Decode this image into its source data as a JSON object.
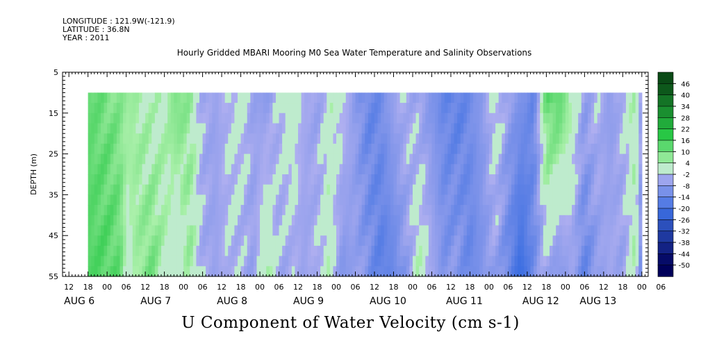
{
  "header": {
    "longitude": "LONGITUDE : 121.9W(-121.9)",
    "latitude": "LATITUDE : 36.8N",
    "year": "YEAR : 2011"
  },
  "chart_data": {
    "type": "heatmap",
    "title": "Hourly Gridded MBARI Mooring M0 Sea Water Temperature and Salinity Observations",
    "xlabel": "U Component of Water Velocity (cm s-1)",
    "ylabel": "DEPTH (m)",
    "ylim": [
      5,
      55
    ],
    "y_inverted": true,
    "y_ticks": [
      5,
      15,
      25,
      35,
      45,
      55
    ],
    "x_unit": "hours since AUG 6 00:00",
    "xlim": [
      -14,
      170
    ],
    "data_xlim": [
      -6,
      168
    ],
    "data_ylim": [
      10,
      55
    ],
    "hour_labels": [
      "12",
      "18",
      "00",
      "06",
      "12",
      "18",
      "00",
      "06",
      "12",
      "18",
      "00",
      "06",
      "12",
      "18",
      "00",
      "06",
      "12",
      "18",
      "00",
      "06",
      "12",
      "18",
      "00",
      "06",
      "12",
      "18",
      "00",
      "06",
      "12",
      "18",
      "00",
      "06"
    ],
    "hour_label_start": -12,
    "date_labels": [
      {
        "label": "AUG  6",
        "hour": -12
      },
      {
        "label": "AUG  7",
        "hour": 12
      },
      {
        "label": "AUG  8",
        "hour": 36
      },
      {
        "label": "AUG  9",
        "hour": 60
      },
      {
        "label": "AUG 10",
        "hour": 84
      },
      {
        "label": "AUG 11",
        "hour": 108
      },
      {
        "label": "AUG 12",
        "hour": 132
      },
      {
        "label": "AUG 13",
        "hour": 150
      }
    ],
    "colorbar": {
      "levels": [
        -50,
        -44,
        -38,
        -32,
        -26,
        -20,
        -14,
        -8,
        -2,
        4,
        10,
        16,
        22,
        28,
        34,
        40,
        46
      ],
      "labels": [
        "46",
        "40",
        "34",
        "28",
        "22",
        "16",
        "10",
        "4",
        "-2",
        "-8",
        "-14",
        "-20",
        "-26",
        "-32",
        "-38",
        "-44",
        "-50"
      ],
      "top_color": "#0a4a16",
      "bottom_color": "#00005a"
    },
    "profile": {
      "hours": [
        -6,
        0,
        4,
        6,
        10,
        14,
        18,
        22,
        26,
        30,
        34,
        38,
        42,
        46,
        50,
        54,
        58,
        62,
        66,
        70,
        74,
        78,
        82,
        86,
        90,
        94,
        98,
        102,
        106,
        110,
        114,
        118,
        122,
        126,
        130,
        134,
        138,
        142,
        146,
        150,
        154,
        158,
        162,
        166,
        168
      ],
      "u_shallow": [
        12,
        10,
        8,
        6,
        5,
        2,
        4,
        10,
        6,
        -4,
        -6,
        -2,
        2,
        -6,
        -8,
        -2,
        4,
        -4,
        -6,
        2,
        0,
        -8,
        -14,
        -12,
        -6,
        -2,
        -6,
        -10,
        -14,
        -16,
        -12,
        -8,
        2,
        -6,
        -10,
        -14,
        12,
        14,
        4,
        -6,
        -2,
        -8,
        -2,
        4,
        -6
      ],
      "u_deep": [
        14,
        14,
        12,
        2,
        6,
        10,
        4,
        -2,
        6,
        -4,
        -6,
        -2,
        -4,
        -6,
        6,
        -4,
        -4,
        -6,
        -2,
        2,
        -10,
        -6,
        -10,
        -16,
        -14,
        -8,
        4,
        -4,
        -10,
        -8,
        -14,
        -10,
        -6,
        -14,
        -22,
        -12,
        -4,
        -10,
        -6,
        -14,
        -8,
        -4,
        -6,
        4,
        -14
      ]
    }
  }
}
